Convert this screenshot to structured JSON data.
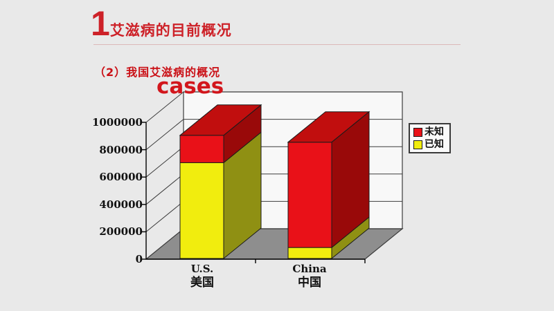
{
  "slide": {
    "title_number": "1",
    "title": "艾滋病的目前概况",
    "subtitle": "（2）我国艾滋病的概况",
    "accent_color": "#cd2128"
  },
  "chart_data": {
    "type": "bar",
    "subtype": "3d-stacked-column",
    "title": "cases",
    "categories": [
      "U.S.",
      "China"
    ],
    "category_sublabels": [
      "美国",
      "中国"
    ],
    "series": [
      {
        "name": "已知",
        "values": [
          700000,
          80000
        ],
        "color": "#f1ed0e",
        "color_side": "#8f9013",
        "color_top": "#c5c10a"
      },
      {
        "name": "未知",
        "values": [
          200000,
          770000
        ],
        "color": "#e91118",
        "color_side": "#990909",
        "color_top": "#c10e0e"
      }
    ],
    "totals": [
      900000,
      850000
    ],
    "ylim": [
      0,
      1000000
    ],
    "y_ticks": [
      0,
      200000,
      400000,
      600000,
      800000,
      1000000
    ],
    "y_tick_labels": [
      "0",
      "200000",
      "400000",
      "600000",
      "800000",
      "1000000"
    ],
    "grid": true,
    "legend": {
      "position": "right",
      "entries": [
        {
          "label": "未知",
          "color": "#e91118"
        },
        {
          "label": "已知",
          "color": "#f1ed0e"
        }
      ]
    },
    "colors": {
      "wall": "#f8f8f8",
      "floor": "#8e8e8e",
      "gridline": "#3c3c3c",
      "axis": "#000000"
    }
  }
}
